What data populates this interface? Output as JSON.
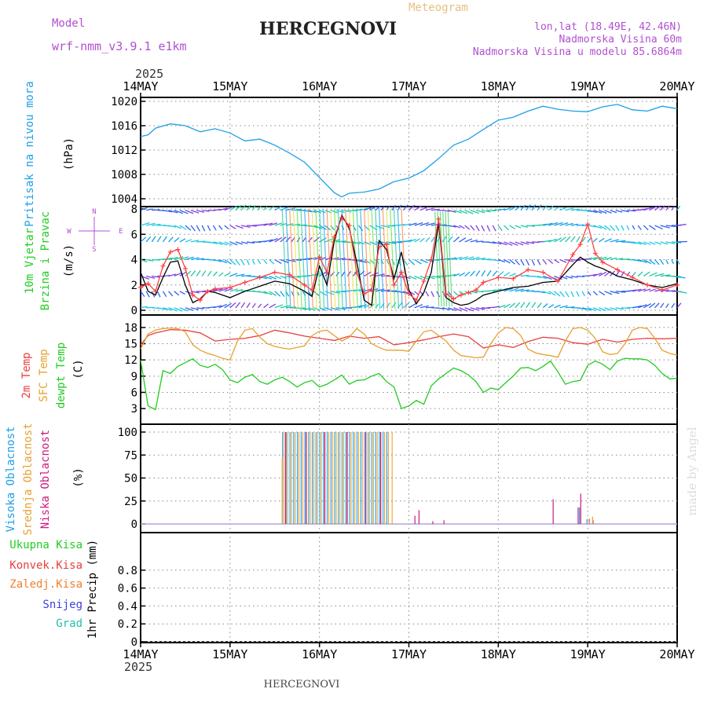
{
  "header": {
    "model_label": "Model",
    "model_name": "wrf-nmm_v3.9.1 e1km",
    "title": "HERCEGNOVI",
    "subtitle": "Meteogram",
    "coords": "lon,lat (18.49E, 42.46N)",
    "elevation": "Nadmorska Visina 60m",
    "model_elevation": "Nadmorska Visina u modelu 85.6864m",
    "footer_title": "HERCEGNOVI",
    "credit": "made by Angel"
  },
  "colors": {
    "pressure": "#1ea0e6",
    "wind_speed": "#000000",
    "wind_gust": "#ff4040",
    "temp_2m": "#e84040",
    "temp_sfc": "#e8a030",
    "dewpoint": "#22cc22",
    "cloud_high": "#1ea0e6",
    "cloud_mid": "#e8a030",
    "cloud_low": "#cc1a80",
    "rain_total": "#22cc22",
    "rain_conv": "#e84040",
    "rain_strat": "#f08030",
    "snow": "#4040e0",
    "hail": "#22c0b0",
    "header_purple": "#b050d0",
    "subtitle_orange": "#e8c080",
    "grid": "#888888"
  },
  "chart_data": {
    "type": "line",
    "time_axis": {
      "year": "2025",
      "labels": [
        "14MAY",
        "15MAY",
        "16MAY",
        "17MAY",
        "18MAY",
        "19MAY",
        "20MAY"
      ],
      "range_hours": [
        0,
        144
      ]
    },
    "panels": [
      {
        "id": "pressure",
        "ylabel": [
          "Pritisak na nivou mora",
          "(hPa)"
        ],
        "ylim": [
          1004,
          1020
        ],
        "ticks": [
          1004,
          1008,
          1012,
          1016,
          1020
        ],
        "series": [
          {
            "color_key": "pressure",
            "x": [
              0,
              2,
              4,
              8,
              12,
              16,
              20,
              24,
              28,
              32,
              36,
              40,
              44,
              48,
              52,
              54,
              56,
              60,
              64,
              68,
              72,
              76,
              80,
              84,
              88,
              92,
              96,
              100,
              104,
              108,
              112,
              116,
              120,
              124,
              128,
              132,
              136,
              140,
              144
            ],
            "y": [
              1014.2,
              1014.5,
              1015.6,
              1016.3,
              1016.0,
              1015.0,
              1015.5,
              1014.8,
              1013.5,
              1013.8,
              1012.8,
              1011.5,
              1010.0,
              1007.5,
              1005.0,
              1004.3,
              1004.9,
              1005.1,
              1005.6,
              1006.8,
              1007.4,
              1008.6,
              1010.6,
              1012.8,
              1013.8,
              1015.4,
              1016.9,
              1017.4,
              1018.4,
              1019.2,
              1018.7,
              1018.4,
              1018.3,
              1019.1,
              1019.5,
              1018.6,
              1018.4,
              1019.2,
              1018.8
            ]
          }
        ]
      },
      {
        "id": "wind",
        "ylabel": [
          "10m Vjetar",
          "Brzina i Pravac",
          "(m/s)"
        ],
        "compass": [
          "N",
          "S",
          "W",
          "E"
        ],
        "ylim": [
          0,
          8
        ],
        "ticks": [
          0,
          2,
          4,
          6,
          8
        ],
        "barb_levels": [
          0.2,
          1.5,
          2.7,
          4.0,
          5.4,
          6.7,
          7.9
        ],
        "series": [
          {
            "color_key": "wind_speed",
            "x": [
              0,
              2,
              4,
              6,
              8,
              10,
              12,
              14,
              16,
              18,
              20,
              24,
              28,
              32,
              36,
              40,
              44,
              46,
              48,
              50,
              52,
              54,
              56,
              58,
              60,
              62,
              64,
              66,
              68,
              70,
              72,
              74,
              76,
              78,
              80,
              82,
              84,
              86,
              88,
              90,
              92,
              96,
              100,
              104,
              108,
              112,
              116,
              118,
              120,
              122,
              124,
              128,
              132,
              136,
              140,
              144
            ],
            "y": [
              3.0,
              1.5,
              1.2,
              2.6,
              3.8,
              3.9,
              2.0,
              0.6,
              0.9,
              1.5,
              1.4,
              1.0,
              1.5,
              1.9,
              2.3,
              2.1,
              1.5,
              1.1,
              3.5,
              2.0,
              5.5,
              7.5,
              6.5,
              3.8,
              0.8,
              0.4,
              5.5,
              4.8,
              2.5,
              4.6,
              1.6,
              0.5,
              1.4,
              3.0,
              6.9,
              1.0,
              0.6,
              0.4,
              0.5,
              0.8,
              1.2,
              1.5,
              1.8,
              1.9,
              2.2,
              2.3,
              3.6,
              4.2,
              3.8,
              3.5,
              3.3,
              2.7,
              2.4,
              2.0,
              1.8,
              2.1
            ]
          },
          {
            "color_key": "wind_gust",
            "x": [
              0,
              2,
              4,
              6,
              8,
              10,
              12,
              14,
              16,
              18,
              20,
              24,
              28,
              32,
              36,
              40,
              44,
              46,
              48,
              50,
              52,
              54,
              56,
              58,
              60,
              62,
              64,
              66,
              68,
              70,
              72,
              74,
              76,
              78,
              80,
              82,
              84,
              86,
              88,
              90,
              92,
              96,
              100,
              104,
              108,
              112,
              116,
              118,
              120,
              122,
              124,
              128,
              132,
              136,
              140,
              144
            ],
            "y": [
              1.8,
              2.1,
              1.5,
              3.5,
              4.6,
              4.8,
              3.3,
              1.2,
              0.8,
              1.5,
              1.7,
              1.8,
              2.2,
              2.6,
              3.0,
              2.8,
              2.0,
              1.6,
              4.2,
              3.0,
              5.8,
              7.3,
              6.7,
              3.0,
              1.3,
              1.6,
              5.0,
              5.2,
              2.0,
              3.0,
              1.3,
              0.8,
              2.3,
              4.0,
              7.2,
              1.3,
              0.9,
              1.2,
              1.4,
              1.6,
              2.2,
              2.6,
              2.5,
              3.2,
              3.0,
              2.3,
              4.4,
              5.2,
              6.8,
              4.5,
              3.8,
              3.2,
              2.6,
              2.0,
              1.6,
              2.0
            ]
          }
        ]
      },
      {
        "id": "temperature",
        "ylabel": [
          "2m Temp",
          "SFC Temp",
          "dewpt Temp",
          "(C)"
        ],
        "ylim": [
          2,
          19
        ],
        "ticks": [
          3,
          6,
          9,
          12,
          15,
          18
        ],
        "series": [
          {
            "color_key": "temp_2m",
            "x": [
              0,
              2,
              4,
              6,
              8,
              12,
              16,
              20,
              24,
              28,
              32,
              36,
              40,
              44,
              48,
              52,
              56,
              60,
              64,
              68,
              72,
              76,
              80,
              84,
              88,
              92,
              96,
              100,
              104,
              108,
              112,
              116,
              120,
              124,
              128,
              132,
              136,
              140,
              144
            ],
            "y": [
              14.8,
              16.5,
              17.0,
              17.3,
              17.6,
              17.5,
              17.0,
              15.5,
              15.8,
              16.0,
              16.5,
              17.5,
              17.0,
              16.4,
              16.0,
              15.6,
              16.4,
              16.0,
              16.3,
              14.8,
              15.2,
              15.7,
              16.3,
              16.8,
              16.3,
              14.2,
              14.8,
              14.3,
              15.4,
              16.2,
              16.0,
              15.2,
              14.9,
              15.8,
              15.3,
              15.8,
              16.0,
              15.9,
              16.0
            ]
          },
          {
            "color_key": "temp_sfc",
            "x": [
              0,
              2,
              4,
              6,
              8,
              10,
              12,
              14,
              16,
              18,
              20,
              22,
              24,
              26,
              28,
              30,
              32,
              34,
              36,
              38,
              40,
              42,
              44,
              46,
              48,
              50,
              52,
              54,
              56,
              58,
              60,
              62,
              64,
              66,
              68,
              70,
              72,
              74,
              76,
              78,
              80,
              82,
              84,
              86,
              88,
              90,
              92,
              94,
              96,
              98,
              100,
              102,
              104,
              106,
              108,
              110,
              112,
              114,
              116,
              118,
              120,
              122,
              124,
              126,
              128,
              130,
              132,
              134,
              136,
              138,
              140,
              142,
              144
            ],
            "y": [
              14.0,
              16.8,
              17.5,
              17.8,
              17.9,
              17.8,
              17.2,
              14.8,
              13.8,
              13.2,
              12.8,
              12.3,
              12.0,
              15.5,
              17.5,
              17.8,
              16.2,
              15.0,
              14.5,
              14.2,
              14.0,
              14.3,
              14.6,
              16.5,
              17.3,
              17.5,
              16.5,
              15.5,
              16.2,
              17.8,
              16.8,
              15.0,
              14.3,
              13.8,
              13.8,
              13.8,
              13.6,
              15.5,
              17.2,
              17.5,
              16.5,
              15.5,
              13.8,
              12.8,
              12.6,
              12.4,
              12.5,
              15.0,
              17.0,
              18.0,
              17.8,
              16.5,
              14.0,
              13.3,
              13.0,
              12.8,
              12.5,
              15.5,
              17.8,
              18.0,
              17.5,
              16.0,
              13.5,
              13.0,
              13.2,
              15.0,
              17.5,
              18.0,
              17.8,
              16.0,
              13.8,
              13.2,
              12.9
            ]
          },
          {
            "color_key": "dewpoint",
            "x": [
              0,
              2,
              4,
              6,
              8,
              10,
              12,
              14,
              16,
              18,
              20,
              22,
              24,
              26,
              28,
              30,
              32,
              34,
              36,
              38,
              40,
              42,
              44,
              46,
              48,
              50,
              52,
              54,
              56,
              58,
              60,
              62,
              64,
              66,
              68,
              70,
              72,
              74,
              76,
              78,
              80,
              82,
              84,
              86,
              88,
              90,
              92,
              94,
              96,
              98,
              100,
              102,
              104,
              106,
              108,
              110,
              112,
              114,
              116,
              118,
              120,
              122,
              124,
              126,
              128,
              130,
              132,
              134,
              136,
              138,
              140,
              142,
              144
            ],
            "y": [
              12.0,
              3.5,
              2.8,
              10.0,
              9.5,
              10.8,
              11.5,
              12.2,
              11.0,
              10.6,
              11.2,
              10.2,
              8.3,
              7.8,
              8.8,
              9.3,
              8.0,
              7.5,
              8.3,
              8.8,
              8.0,
              7.0,
              7.8,
              8.2,
              7.0,
              7.5,
              8.3,
              9.2,
              7.5,
              8.2,
              8.3,
              9.0,
              9.5,
              8.0,
              7.0,
              3.0,
              3.5,
              4.5,
              3.8,
              7.2,
              8.5,
              9.5,
              10.5,
              10.0,
              9.2,
              8.0,
              6.0,
              6.8,
              6.5,
              7.8,
              9.0,
              10.5,
              10.6,
              10.0,
              10.8,
              11.8,
              9.8,
              7.5,
              8.0,
              8.2,
              11.0,
              11.8,
              11.2,
              10.2,
              11.8,
              12.3,
              12.2,
              12.2,
              12.0,
              11.0,
              9.5,
              8.5,
              8.6
            ]
          }
        ]
      },
      {
        "id": "clouds",
        "ylabel": [
          "Visoka Oblacnost",
          "Srednja Oblacnost",
          "Niska Oblacnost",
          "(%)"
        ],
        "ylim": [
          0,
          100
        ],
        "ticks": [
          0,
          25,
          50,
          75,
          100
        ],
        "high_full_range": [
          38.5,
          66.5
        ],
        "mid_full_range": [
          38.5,
          67.5
        ],
        "mid_extra": [
          [
            38.0,
            72
          ]
        ],
        "low_spikes": [
          [
            38.5,
            100
          ],
          [
            44.0,
            100
          ],
          [
            49.0,
            100
          ],
          [
            55.0,
            100
          ],
          [
            60.0,
            100
          ],
          [
            64.0,
            100
          ],
          [
            73.2,
            9
          ],
          [
            74.3,
            15
          ],
          [
            78.0,
            3
          ],
          [
            81.0,
            4
          ],
          [
            110.3,
            27
          ],
          [
            117.0,
            18
          ],
          [
            117.7,
            33
          ],
          [
            120.0,
            5
          ],
          [
            121.0,
            4
          ]
        ],
        "mid_spikes": [
          [
            120.5,
            6
          ],
          [
            121.3,
            8
          ]
        ],
        "high_spikes": [
          [
            118.0,
            18
          ],
          [
            120.0,
            5
          ]
        ]
      },
      {
        "id": "precip",
        "ylabel": [
          "1hr Precip (mm)"
        ],
        "legend": [
          "Ukupna Kisa",
          "Konvek.Kisa",
          "Zaledj.Kisa",
          "Snijeg",
          "Grad"
        ],
        "legend_keys": [
          "rain_total",
          "rain_conv",
          "rain_strat",
          "snow",
          "hail"
        ],
        "ylim": [
          0,
          1
        ],
        "ticks": [
          0,
          0.2,
          0.4,
          0.6,
          0.8
        ],
        "series": []
      }
    ]
  }
}
